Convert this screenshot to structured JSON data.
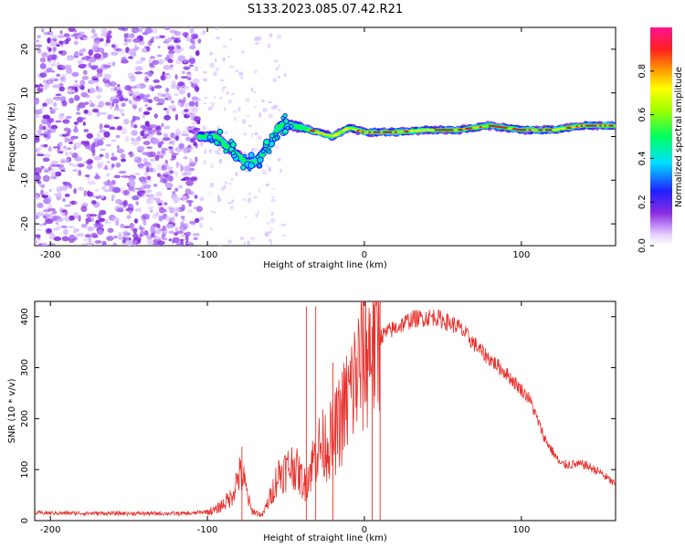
{
  "title": "S133.2023.085.07.42.R21",
  "colors": {
    "snr_line": "#e8302b",
    "axis": "#000000",
    "blob_low": "#8a2be2",
    "blob_core": "#e02020"
  },
  "chart_data": [
    {
      "type": "heatmap",
      "name": "spectrogram",
      "title": "S133.2023.085.07.42.R21",
      "xlabel": "Height of straight line (km)",
      "ylabel": "Frequency (Hz)",
      "xlim": [
        -210,
        160
      ],
      "ylim": [
        -25,
        25
      ],
      "xticks": [
        -200,
        -100,
        0,
        100
      ],
      "yticks": [
        -20,
        -10,
        0,
        10,
        20
      ],
      "xtick_labels": [
        "-200",
        "-100",
        "0",
        "100"
      ],
      "ytick_labels": [
        "-20",
        "-10",
        "0",
        "10",
        "20"
      ],
      "ridge": {
        "x": [
          -105,
          -95,
          -85,
          -75,
          -70,
          -65,
          -60,
          -55,
          -50,
          -40,
          -30,
          -20,
          -10,
          0,
          20,
          40,
          60,
          80,
          100,
          120,
          140,
          160
        ],
        "y": [
          0,
          0,
          -3,
          -6,
          -6,
          -4,
          -2,
          2,
          3,
          2,
          1,
          0,
          2,
          1,
          1,
          1.5,
          1.5,
          2.5,
          1.5,
          1.5,
          2.5,
          2.5
        ]
      },
      "colorbar": {
        "label": "Normalized spectral amplitude",
        "range": [
          0,
          1
        ],
        "ticks": [
          0.0,
          0.2,
          0.4,
          0.6,
          0.8
        ],
        "tick_labels": [
          "0.0",
          "0.2",
          "0.4",
          "0.6",
          "0.8"
        ]
      }
    },
    {
      "type": "line",
      "name": "snr",
      "xlabel": "Height of straight line (km)",
      "ylabel": "SNR (10 * v/v)",
      "xlim": [
        -210,
        160
      ],
      "ylim": [
        0,
        430
      ],
      "xticks": [
        -200,
        -100,
        0,
        100
      ],
      "yticks": [
        0,
        100,
        200,
        300,
        400
      ],
      "xtick_labels": [
        "-200",
        "-100",
        "0",
        "100"
      ],
      "ytick_labels": [
        "0",
        "100",
        "200",
        "300",
        "400"
      ],
      "envelope": {
        "x": [
          -210,
          -150,
          -110,
          -95,
          -85,
          -80,
          -77,
          -72,
          -65,
          -60,
          -55,
          -45,
          -38,
          -30,
          -20,
          -10,
          -2,
          5,
          15,
          30,
          45,
          60,
          75,
          90,
          105,
          115,
          125,
          140,
          150,
          160
        ],
        "y": [
          15,
          14,
          14,
          20,
          45,
          90,
          80,
          20,
          10,
          45,
          90,
          110,
          70,
          140,
          160,
          240,
          310,
          350,
          370,
          395,
          400,
          380,
          330,
          290,
          240,
          160,
          110,
          110,
          95,
          70
        ]
      },
      "spikes": [
        {
          "x": -78,
          "y": 145
        },
        {
          "x": -37,
          "y": 420
        },
        {
          "x": -31,
          "y": 420
        },
        {
          "x": -20,
          "y": 310
        },
        {
          "x": 5,
          "y": 380
        },
        {
          "x": 10,
          "y": 430
        }
      ]
    }
  ]
}
